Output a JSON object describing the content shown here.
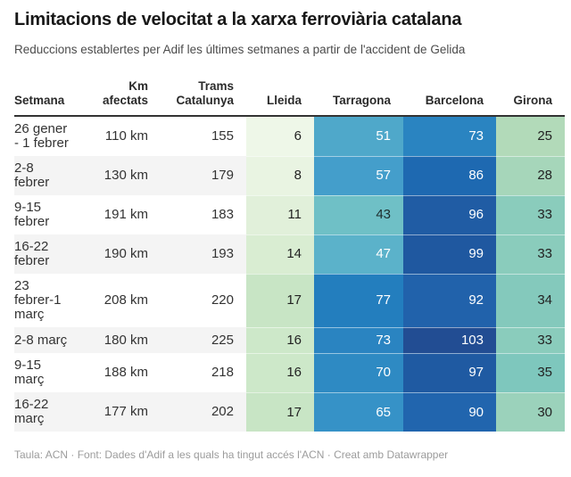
{
  "title": "Limitacions de velocitat a la xarxa ferroviària catalana",
  "subtitle": "Reduccions establertes per Adif les últimes setmanes a partir de l'accident de Gelida",
  "footer": "Taula: ACN · Font: Dades d'Adif a les quals ha tingut accés l'ACN · Creat amb Datawrapper",
  "colors": {
    "header_border": "#333333",
    "zebra_stripe": "#f4f4f4",
    "cell_text_dark": "#222222",
    "cell_text_light": "#ffffff"
  },
  "chart_data": {
    "type": "table",
    "title": "Limitacions de velocitat a la xarxa ferroviària catalana",
    "subtitle": "Reduccions establertes per Adif les últimes setmanes a partir de l'accident de Gelida",
    "columns": [
      "Setmana",
      "Km afectats",
      "Trams Catalunya",
      "Lleida",
      "Tarragona",
      "Barcelona",
      "Girona"
    ],
    "heatmap_columns": [
      "Lleida",
      "Tarragona",
      "Barcelona",
      "Girona"
    ],
    "heatmap_scale": {
      "low": "#eef7e8",
      "mid": "#54abc9",
      "high": "#224d93"
    },
    "rows": [
      {
        "setmana": "26 gener - 1 febrer",
        "km_afectats": "110 km",
        "trams_catalunya": "155",
        "lleida": {
          "value": "6",
          "bg": "#eef7e8",
          "fg": "#222222"
        },
        "tarragona": {
          "value": "51",
          "bg": "#4fa8ca",
          "fg": "#ffffff"
        },
        "barcelona": {
          "value": "73",
          "bg": "#2a84c1",
          "fg": "#ffffff"
        },
        "girona": {
          "value": "25",
          "bg": "#b2dab9",
          "fg": "#222222"
        }
      },
      {
        "setmana": "2-8 febrer",
        "km_afectats": "130 km",
        "trams_catalunya": "179",
        "lleida": {
          "value": "8",
          "bg": "#e9f4e2",
          "fg": "#222222"
        },
        "tarragona": {
          "value": "57",
          "bg": "#449ecb",
          "fg": "#ffffff"
        },
        "barcelona": {
          "value": "86",
          "bg": "#1e69b1",
          "fg": "#ffffff"
        },
        "girona": {
          "value": "28",
          "bg": "#a6d6ba",
          "fg": "#222222"
        }
      },
      {
        "setmana": "9-15 febrer",
        "km_afectats": "191 km",
        "trams_catalunya": "183",
        "lleida": {
          "value": "11",
          "bg": "#e1f0da",
          "fg": "#222222"
        },
        "tarragona": {
          "value": "43",
          "bg": "#6fc0c6",
          "fg": "#1d2d2d"
        },
        "barcelona": {
          "value": "96",
          "bg": "#205ca4",
          "fg": "#ffffff"
        },
        "girona": {
          "value": "33",
          "bg": "#8accbc",
          "fg": "#222222"
        }
      },
      {
        "setmana": "16-22 febrer",
        "km_afectats": "190 km",
        "trams_catalunya": "193",
        "lleida": {
          "value": "14",
          "bg": "#d9edd2",
          "fg": "#222222"
        },
        "tarragona": {
          "value": "47",
          "bg": "#5bb2ca",
          "fg": "#ffffff"
        },
        "barcelona": {
          "value": "99",
          "bg": "#1f58a0",
          "fg": "#ffffff"
        },
        "girona": {
          "value": "33",
          "bg": "#8accbc",
          "fg": "#222222"
        }
      },
      {
        "setmana": "23 febrer-1 març",
        "km_afectats": "208 km",
        "trams_catalunya": "220",
        "lleida": {
          "value": "17",
          "bg": "#c8e5c5",
          "fg": "#222222"
        },
        "tarragona": {
          "value": "77",
          "bg": "#237ebe",
          "fg": "#ffffff"
        },
        "barcelona": {
          "value": "92",
          "bg": "#2162ab",
          "fg": "#ffffff"
        },
        "girona": {
          "value": "34",
          "bg": "#84c9bc",
          "fg": "#222222"
        }
      },
      {
        "setmana": "2-8 març",
        "km_afectats": "180 km",
        "trams_catalunya": "225",
        "lleida": {
          "value": "16",
          "bg": "#cde8c9",
          "fg": "#222222"
        },
        "tarragona": {
          "value": "73",
          "bg": "#2a84c1",
          "fg": "#ffffff"
        },
        "barcelona": {
          "value": "103",
          "bg": "#224d93",
          "fg": "#ffffff"
        },
        "girona": {
          "value": "33",
          "bg": "#8accbc",
          "fg": "#222222"
        }
      },
      {
        "setmana": "9-15 març",
        "km_afectats": "188 km",
        "trams_catalunya": "218",
        "lleida": {
          "value": "16",
          "bg": "#cde8c9",
          "fg": "#222222"
        },
        "tarragona": {
          "value": "70",
          "bg": "#2e8ac3",
          "fg": "#ffffff"
        },
        "barcelona": {
          "value": "97",
          "bg": "#1f5aa2",
          "fg": "#ffffff"
        },
        "girona": {
          "value": "35",
          "bg": "#7ec7bd",
          "fg": "#222222"
        }
      },
      {
        "setmana": "16-22 març",
        "km_afectats": "177 km",
        "trams_catalunya": "202",
        "lleida": {
          "value": "17",
          "bg": "#c8e5c5",
          "fg": "#222222"
        },
        "tarragona": {
          "value": "65",
          "bg": "#3692c7",
          "fg": "#ffffff"
        },
        "barcelona": {
          "value": "90",
          "bg": "#2165ae",
          "fg": "#ffffff"
        },
        "girona": {
          "value": "30",
          "bg": "#9bd2bb",
          "fg": "#222222"
        }
      }
    ]
  }
}
